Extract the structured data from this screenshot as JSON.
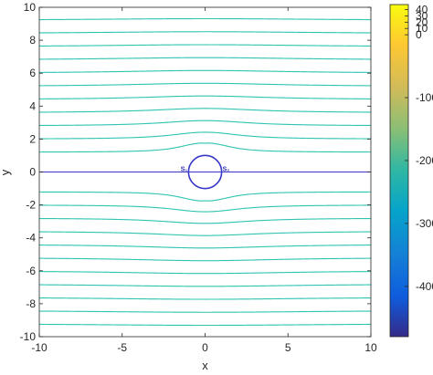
{
  "chart_data": {
    "type": "contour",
    "title": "",
    "xlabel": "x",
    "ylabel": "y",
    "xlim": [
      -10,
      10
    ],
    "ylim": [
      -10,
      10
    ],
    "xticks": [
      -10,
      -5,
      0,
      5,
      10
    ],
    "yticks": [
      -10,
      -8,
      -6,
      -4,
      -2,
      0,
      2,
      4,
      6,
      8,
      10
    ],
    "cylinder": {
      "center": [
        0,
        0
      ],
      "radius": 1.0
    },
    "stagnation_points": [
      {
        "label": "S₁",
        "x": -1,
        "y": 0
      },
      {
        "label": "S₂",
        "x": 1,
        "y": 0
      }
    ],
    "streamline_far_y": [
      -10,
      -9.2,
      -8.4,
      -7.6,
      -6.8,
      -6.0,
      -5.2,
      -4.4,
      -3.6,
      -2.8,
      -2.0,
      -1.2,
      0,
      1.2,
      2.0,
      2.8,
      3.6,
      4.4,
      5.2,
      6.0,
      6.8,
      7.6,
      8.4,
      9.2,
      10
    ],
    "line_color": "#2ec4b0",
    "dividing_line_color": "#3737c8",
    "colorbar": {
      "ticks": [
        40,
        30,
        20,
        10,
        0,
        -100,
        -200,
        -300,
        -400
      ],
      "lim": [
        -480,
        48
      ],
      "colormap": "parula"
    }
  }
}
